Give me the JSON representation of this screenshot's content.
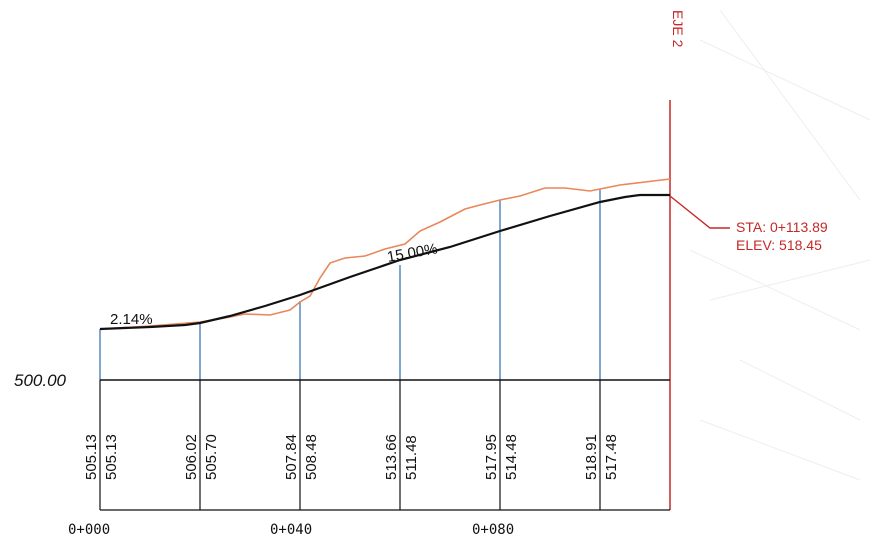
{
  "axis_name": "EJE 2",
  "datum_label": "500.00",
  "callout": {
    "sta": "STA: 0+113.89",
    "elev": "ELEV: 518.45"
  },
  "grades": {
    "left": "2.14%",
    "main": "15.00%"
  },
  "stations": [
    {
      "ground": "505.13",
      "design": "505.13"
    },
    {
      "ground": "506.02",
      "design": "505.70"
    },
    {
      "ground": "507.84",
      "design": "508.48"
    },
    {
      "ground": "513.66",
      "design": "511.48"
    },
    {
      "ground": "517.95",
      "design": "514.48"
    },
    {
      "ground": "518.91",
      "design": "517.48"
    }
  ],
  "station_labels": [
    "0+000",
    "0+040",
    "0+080"
  ],
  "colors": {
    "terrain": "#e8875a",
    "design": "#111111",
    "ordinate": "#3b79b5",
    "axis": "#c62828",
    "frame": "#111111"
  }
}
